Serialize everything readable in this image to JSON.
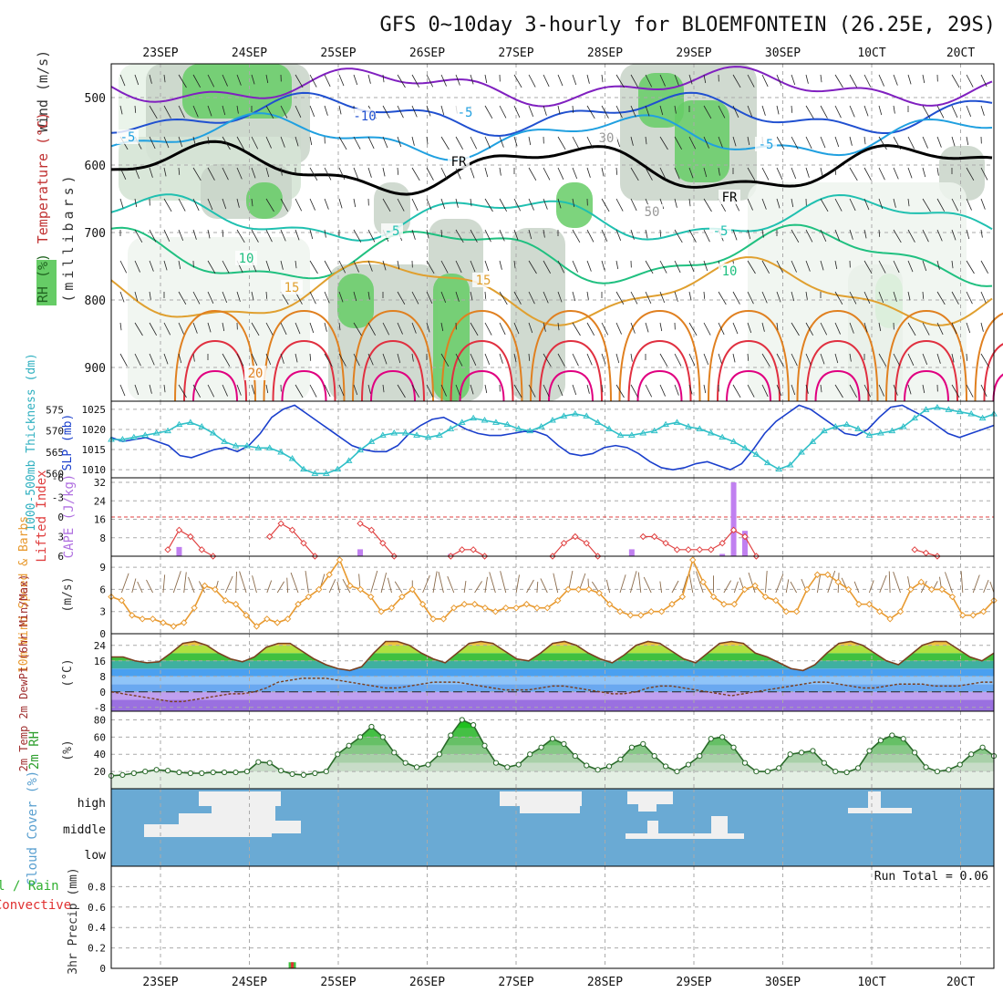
{
  "title": "GFS 0~10day 3-hourly for BLOEMFONTEIN (26.25E, 29S)",
  "dates": [
    "23SEP",
    "24SEP",
    "25SEP",
    "26SEP",
    "27SEP",
    "28SEP",
    "29SEP",
    "30SEP",
    "1OCT",
    "2OCT"
  ],
  "date_labels_top": [
    "23SEP",
    "24SEP",
    "25SEP",
    "26SEP",
    "27SEP",
    "28SEP",
    "29SEP",
    "30SEP",
    "10CT",
    "20CT"
  ],
  "date_labels_bottom": [
    "23SEP",
    "24SEP",
    "25SEP",
    "26SEP",
    "27SEP",
    "28SEP",
    "29SEP",
    "30SEP",
    "10CT",
    "20CT"
  ],
  "colors": {
    "rh_green": "#66cc66",
    "rh_light": "#e6f2e6",
    "rh_gray": "#c8d3c8",
    "temp_purple": "#8020c0",
    "temp_blue": "#2050d0",
    "temp_cyan": "#20a0e0",
    "temp_teal": "#20c0b0",
    "temp_green": "#20c080",
    "temp_gold": "#e0a030",
    "temp_orange": "#e08020",
    "temp_red": "#e03040",
    "temp_magenta": "#e00080",
    "slp": "#1a3fcc",
    "thickness": "#30c0c8",
    "lifted": "#e04040",
    "cape": "#c080f0",
    "wind": "#e89a30",
    "barb": "#8a6a4a",
    "rh2m": "#40c040",
    "cloud": "#6aaad4",
    "cloud_white": "#f0f0f0",
    "precip_total": "#40c040",
    "precip_conv": "#e03030"
  },
  "panels": {
    "upper": {
      "ylabel_wind": "Wind (m/s)",
      "ylabel_temp": "Temperature (°C)",
      "ylabel_rh": "RH (%)",
      "ylabel_pressure": "(millibars)",
      "pressure_ticks": [
        "500",
        "600",
        "700",
        "800",
        "900"
      ],
      "contour_labels": [
        "-10",
        "-5",
        "-5",
        "-5",
        "FR",
        "FR",
        "-5",
        "-5",
        "10",
        "10",
        "15",
        "15",
        "20",
        "30",
        "50"
      ]
    },
    "slp": {
      "ylabel_left": "1000-500mb Thickness (dm)",
      "ylabel_right": "SLP (mb)",
      "left_ticks": [
        "575",
        "570",
        "565",
        "560"
      ],
      "right_ticks": [
        "1025",
        "1020",
        "1015",
        "1010"
      ]
    },
    "cape": {
      "ylabel_left": "Lifted Index",
      "ylabel_right": "CAPE (J/kg)",
      "left_ticks": [
        "-6",
        "-3",
        "0",
        "3",
        "6"
      ],
      "right_ticks": [
        "32",
        "24",
        "16",
        "8"
      ]
    },
    "wind": {
      "ylabel": "10m Wind Speed & Barbs",
      "ylabel_unit": "(m/s)",
      "ticks": [
        "9",
        "6",
        "3",
        "0"
      ]
    },
    "temp": {
      "ylabel": "2m Temp 2m DewPt (6hr Min/Max)",
      "ylabel_unit": "(°C)",
      "ticks": [
        "24",
        "16",
        "8",
        "0",
        "-8"
      ]
    },
    "rh": {
      "ylabel": "2m RH",
      "ylabel_unit": "(%)",
      "ticks": [
        "80",
        "60",
        "40",
        "20"
      ]
    },
    "cloud": {
      "ylabel": "Cloud Cover (%)",
      "levels": [
        "high",
        "middle",
        "low"
      ]
    },
    "precip": {
      "ylabel_total": "Total / Rain",
      "ylabel_conv": "Convective",
      "ylabel_unit": "3hr Precip (mm)",
      "ticks": [
        "0.8",
        "0.6",
        "0.4",
        "0.2",
        "0"
      ],
      "run_total": "Run Total = 0.06"
    }
  },
  "chart_data": [
    {
      "type": "line",
      "panel": "SLP and 1000-500mb thickness",
      "ylim_slp": [
        1008,
        1027
      ],
      "ylim_thickness": [
        559,
        577
      ],
      "series": [
        {
          "name": "SLP (mb)",
          "values": [
            1018,
            1017,
            1017.5,
            1018,
            1017,
            1016,
            1013.5,
            1013,
            1014,
            1015,
            1015.5,
            1014.5,
            1016,
            1019,
            1023,
            1025,
            1026,
            1024,
            1022,
            1020,
            1018,
            1016,
            1015,
            1014.5,
            1014.5,
            1016,
            1019,
            1021,
            1022.5,
            1023,
            1021.5,
            1020,
            1019,
            1018.5,
            1018.5,
            1019,
            1019.5,
            1019.5,
            1018.5,
            1016,
            1014,
            1013.5,
            1014,
            1015.5,
            1016,
            1015.5,
            1014,
            1012,
            1010.5,
            1010,
            1010.5,
            1011.5,
            1012,
            1011,
            1010,
            1011.5,
            1015,
            1019,
            1022,
            1024,
            1026,
            1025,
            1023,
            1021,
            1019,
            1018.5,
            1020,
            1023,
            1025.5,
            1026,
            1024.5,
            1023,
            1021,
            1019,
            1018,
            1019,
            1020,
            1021
          ]
        },
        {
          "name": "1000-500mb Thickness (dm)",
          "values": [
            568,
            568,
            568.5,
            569,
            569.5,
            570,
            571.5,
            572,
            571,
            569.5,
            567.5,
            566.5,
            566.5,
            566,
            566,
            565,
            563.5,
            561,
            560,
            560,
            561,
            563,
            565.5,
            567.5,
            569,
            569.5,
            569.5,
            569,
            568.5,
            569,
            570.5,
            572,
            573,
            572.5,
            572,
            571.5,
            570.5,
            570,
            571,
            572.5,
            573.5,
            574,
            573.5,
            572,
            570.5,
            569,
            569,
            569.5,
            570,
            571.5,
            572,
            571,
            570.5,
            569.5,
            568.5,
            567.5,
            566,
            564.5,
            562.5,
            561,
            562,
            565,
            567.5,
            570,
            571,
            571.5,
            570.5,
            569,
            569.5,
            570,
            571,
            573,
            575,
            575.5,
            575,
            574.5,
            574,
            573,
            574
          ]
        }
      ]
    },
    {
      "type": "bar",
      "panel": "CAPE and Lifted Index",
      "ylim_cape": [
        0,
        34
      ],
      "ylim_lifted": [
        6,
        -6
      ],
      "series": [
        {
          "name": "CAPE (J/kg)",
          "values": [
            0,
            0,
            0,
            0,
            0,
            0,
            4,
            0,
            0,
            0,
            0,
            0,
            0,
            0,
            0,
            0,
            0,
            0,
            0,
            0,
            0,
            0,
            3,
            0,
            0,
            0,
            0,
            0,
            0,
            0,
            1,
            0,
            0,
            0,
            0,
            0,
            0,
            0,
            0,
            0,
            0,
            0,
            0,
            0,
            0,
            0,
            3,
            0,
            0,
            0,
            0,
            0,
            0,
            0,
            1,
            32,
            11,
            0,
            0,
            0,
            0,
            0,
            0,
            0,
            0,
            0,
            0,
            0,
            0,
            0,
            0,
            0,
            0,
            0,
            0,
            0,
            0,
            0,
            0
          ]
        },
        {
          "name": "Lifted Index",
          "values": [
            null,
            null,
            null,
            null,
            null,
            5,
            2,
            3,
            5,
            6,
            null,
            null,
            null,
            null,
            3,
            1,
            2,
            4,
            6,
            null,
            null,
            null,
            1,
            2,
            4,
            6,
            null,
            null,
            null,
            null,
            6,
            5,
            5,
            6,
            null,
            null,
            null,
            null,
            null,
            6,
            4,
            3,
            4,
            6,
            null,
            null,
            null,
            3,
            3,
            4,
            5,
            5,
            5,
            5,
            4,
            2,
            3,
            6,
            null,
            null,
            null,
            null,
            null,
            null,
            null,
            null,
            null,
            null,
            null,
            null,
            null,
            5,
            5.5,
            6,
            null,
            null,
            null,
            null,
            null
          ]
        }
      ]
    },
    {
      "type": "line",
      "panel": "10m Wind Speed",
      "ylim": [
        0,
        10.5
      ],
      "series": [
        {
          "name": "10m Wind Speed (m/s)",
          "values": [
            5,
            4.5,
            2.5,
            2,
            2,
            1.5,
            1,
            1.5,
            3.5,
            6.5,
            6,
            4.5,
            4,
            2.5,
            1,
            2,
            1.5,
            2,
            4,
            5,
            6,
            8,
            10,
            6.5,
            6,
            5,
            3,
            3.5,
            5,
            6,
            4,
            2,
            2,
            3.5,
            4,
            4,
            3.5,
            3,
            3.5,
            3.5,
            4,
            3.5,
            3.5,
            4.5,
            6,
            6,
            6,
            5.5,
            4,
            3,
            2.5,
            2.5,
            3,
            3,
            4,
            5,
            10,
            7,
            5,
            4,
            4,
            6,
            6.5,
            5,
            4.5,
            3,
            3,
            6,
            8,
            8,
            7,
            6,
            4,
            4,
            3,
            2,
            3,
            6,
            7,
            6,
            6,
            5,
            2.5,
            2.5,
            3,
            4.5
          ]
        }
      ]
    },
    {
      "type": "line",
      "panel": "2m Temp and DewPt",
      "ylim": [
        -10,
        30
      ],
      "series": [
        {
          "name": "2m Temp (°C)",
          "values": [
            18,
            18,
            16,
            15,
            15.5,
            20,
            25,
            26,
            24,
            20,
            17,
            15.5,
            18,
            23,
            25,
            25,
            21,
            17,
            14,
            12,
            11,
            13,
            20,
            26,
            26,
            24,
            20,
            17,
            15,
            20,
            25,
            26,
            25,
            21,
            17,
            16,
            20,
            25,
            26,
            24,
            20,
            17,
            15,
            19,
            24,
            26,
            25,
            21,
            17,
            15,
            20,
            25,
            26,
            25,
            20,
            18,
            15,
            12,
            11,
            14,
            20,
            25,
            26,
            24,
            20,
            16,
            14,
            19,
            24,
            26,
            26,
            22,
            18,
            16,
            20
          ]
        },
        {
          "name": "2m DewPt (°C)",
          "values": [
            0,
            -1,
            -2,
            -3,
            -4,
            -5,
            -5,
            -4,
            -3,
            -2,
            -1,
            -1,
            0,
            2,
            5,
            6,
            7,
            7,
            7,
            6,
            5,
            4,
            3,
            2,
            2,
            3,
            4,
            5,
            5,
            5,
            4,
            3,
            2,
            1,
            1,
            1,
            2,
            3,
            3,
            2,
            1,
            0,
            -1,
            -1,
            0,
            2,
            3,
            3,
            2,
            1,
            0,
            -1,
            -2,
            -1,
            0,
            1,
            2,
            3,
            4,
            5,
            5,
            4,
            3,
            2,
            2,
            3,
            4,
            4,
            4,
            3,
            3,
            3,
            4,
            5,
            5
          ]
        }
      ]
    },
    {
      "type": "area",
      "panel": "2m RH",
      "ylim": [
        0,
        90
      ],
      "series": [
        {
          "name": "2m RH (%)",
          "values": [
            15,
            16,
            18,
            20,
            22,
            21,
            19,
            18,
            18,
            19,
            19,
            19,
            20,
            31,
            30,
            21,
            17,
            16,
            18,
            20,
            40,
            50,
            60,
            72,
            60,
            42,
            30,
            25,
            28,
            40,
            62,
            80,
            74,
            50,
            30,
            25,
            28,
            40,
            48,
            58,
            52,
            38,
            27,
            22,
            26,
            34,
            48,
            52,
            38,
            26,
            20,
            28,
            38,
            58,
            60,
            48,
            30,
            20,
            20,
            24,
            40,
            42,
            44,
            30,
            20,
            19,
            24,
            44,
            56,
            62,
            58,
            42,
            25,
            20,
            22,
            28,
            40,
            48,
            38
          ]
        }
      ]
    },
    {
      "type": "bar",
      "panel": "3hr Precip",
      "ylim": [
        0,
        1
      ],
      "series": [
        {
          "name": "Total / Rain (mm)",
          "values": [
            0,
            0,
            0,
            0,
            0,
            0,
            0,
            0,
            0,
            0,
            0,
            0,
            0,
            0,
            0,
            0,
            0.06,
            0,
            0,
            0,
            0,
            0,
            0,
            0,
            0,
            0,
            0,
            0,
            0,
            0,
            0,
            0,
            0,
            0,
            0,
            0,
            0,
            0,
            0,
            0,
            0,
            0,
            0,
            0,
            0,
            0,
            0,
            0,
            0,
            0,
            0,
            0,
            0,
            0,
            0,
            0,
            0,
            0,
            0,
            0,
            0,
            0,
            0,
            0,
            0,
            0,
            0,
            0,
            0,
            0,
            0,
            0,
            0,
            0,
            0,
            0,
            0,
            0,
            0
          ]
        },
        {
          "name": "Convective (mm)",
          "values": [
            0,
            0,
            0,
            0,
            0,
            0,
            0,
            0,
            0,
            0,
            0,
            0,
            0,
            0,
            0,
            0,
            0.06,
            0,
            0,
            0,
            0,
            0,
            0,
            0,
            0,
            0,
            0,
            0,
            0,
            0,
            0,
            0,
            0,
            0,
            0,
            0,
            0,
            0,
            0,
            0,
            0,
            0,
            0,
            0,
            0,
            0,
            0,
            0,
            0,
            0,
            0,
            0,
            0,
            0,
            0,
            0,
            0,
            0,
            0,
            0,
            0,
            0,
            0,
            0,
            0,
            0,
            0,
            0,
            0,
            0,
            0,
            0,
            0,
            0,
            0,
            0,
            0,
            0,
            0
          ]
        }
      ]
    }
  ]
}
